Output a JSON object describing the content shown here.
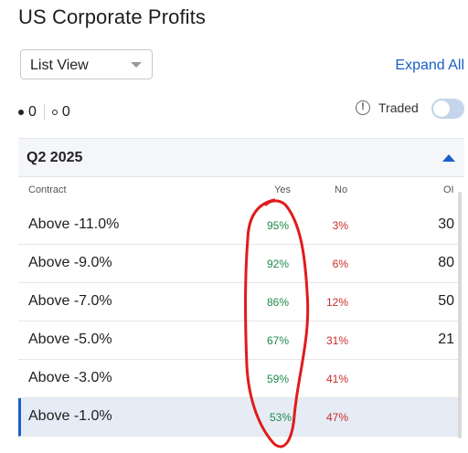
{
  "header": {
    "title": "US Corporate Profits"
  },
  "view_select": {
    "value": "List View"
  },
  "expand_all": "Expand All",
  "filters": {
    "filled_count": "0",
    "open_count": "0"
  },
  "traded": {
    "label": "Traded",
    "enabled": false
  },
  "section": {
    "label": "Q2 2025",
    "expanded": true
  },
  "columns": {
    "contract": "Contract",
    "yes": "Yes",
    "no": "No",
    "oi": "OI"
  },
  "rows": [
    {
      "contract": "Above -11.0%",
      "yes": "95%",
      "no": "3%",
      "oi": "30"
    },
    {
      "contract": "Above -9.0%",
      "yes": "92%",
      "no": "6%",
      "oi": "80"
    },
    {
      "contract": "Above -7.0%",
      "yes": "86%",
      "no": "12%",
      "oi": "50"
    },
    {
      "contract": "Above -5.0%",
      "yes": "67%",
      "no": "31%",
      "oi": "21"
    },
    {
      "contract": "Above -3.0%",
      "yes": "59%",
      "no": "41%",
      "oi": ""
    },
    {
      "contract": "Above -1.0%",
      "yes": "53%",
      "no": "47%",
      "oi": "",
      "selected": true
    }
  ],
  "colors": {
    "accent": "#1a5fc7",
    "yes": "#1f8a4c",
    "no": "#c92d2d",
    "annotation": "#e01b1b"
  }
}
